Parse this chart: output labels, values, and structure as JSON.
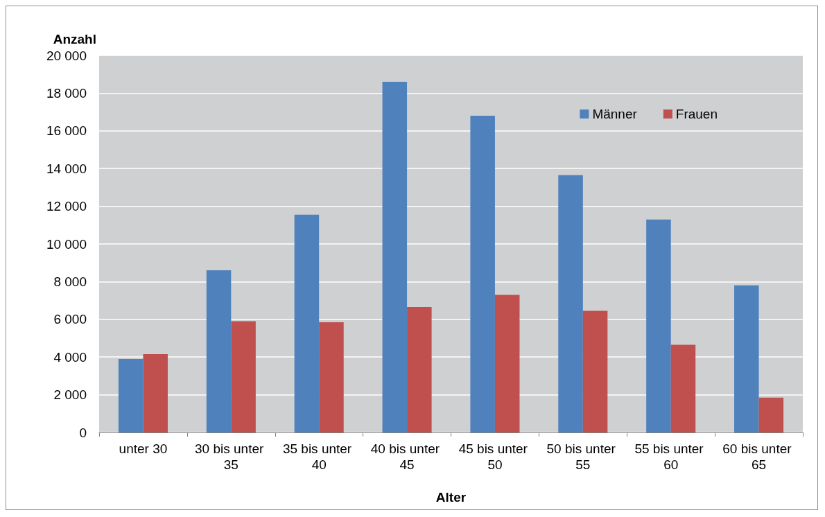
{
  "chart_data": {
    "type": "bar",
    "xlabel": "Alter",
    "ylabel": "Anzahl",
    "categories": [
      "unter 30",
      "30 bis unter 35",
      "35 bis unter 40",
      "40 bis unter 45",
      "45 bis unter 50",
      "50 bis unter 55",
      "55 bis unter 60",
      "60 bis unter 65"
    ],
    "series": [
      {
        "name": "Männer",
        "color": "#4f81bd",
        "values": [
          3900,
          8600,
          11550,
          18600,
          16800,
          13650,
          11300,
          7800
        ]
      },
      {
        "name": "Frauen",
        "color": "#c0504d",
        "values": [
          4150,
          5900,
          5850,
          6650,
          7300,
          6450,
          4650,
          1850
        ]
      }
    ],
    "ylim": [
      0,
      20000
    ],
    "yticks": [
      {
        "value": 0,
        "label": "0"
      },
      {
        "value": 2000,
        "label": "2 000"
      },
      {
        "value": 4000,
        "label": "4 000"
      },
      {
        "value": 6000,
        "label": "6 000"
      },
      {
        "value": 8000,
        "label": "8 000"
      },
      {
        "value": 10000,
        "label": "10 000"
      },
      {
        "value": 12000,
        "label": "12 000"
      },
      {
        "value": 14000,
        "label": "14 000"
      },
      {
        "value": 16000,
        "label": "16 000"
      },
      {
        "value": 18000,
        "label": "18 000"
      },
      {
        "value": 20000,
        "label": "20 000"
      }
    ],
    "grid": "y",
    "legend": "top right"
  }
}
